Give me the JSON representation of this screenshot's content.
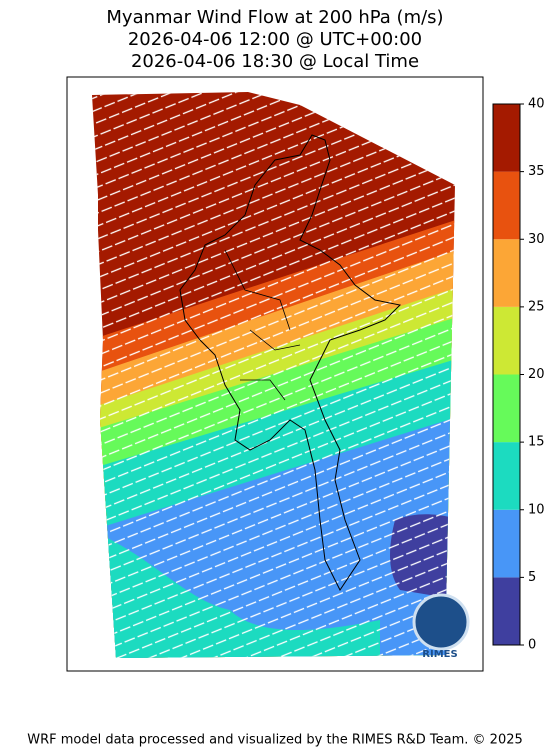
{
  "title_lines": [
    "Myanmar Wind Flow at 200 hPa (m/s)",
    "2026-04-06 12:00 @ UTC+00:00",
    "2026-04-06 18:30 @ Local Time"
  ],
  "colorbar": {
    "levels": [
      0,
      5,
      10,
      15,
      20,
      25,
      30,
      35,
      40
    ],
    "colors": [
      "#3f3f9f",
      "#4896f7",
      "#1cdbc0",
      "#66fa5a",
      "#cde834",
      "#fca636",
      "#e8520f",
      "#a41a00"
    ]
  },
  "logo": "RIMES",
  "footer": "WRF model data processed and visualized by the RIMES R&D Team. © 2025"
}
